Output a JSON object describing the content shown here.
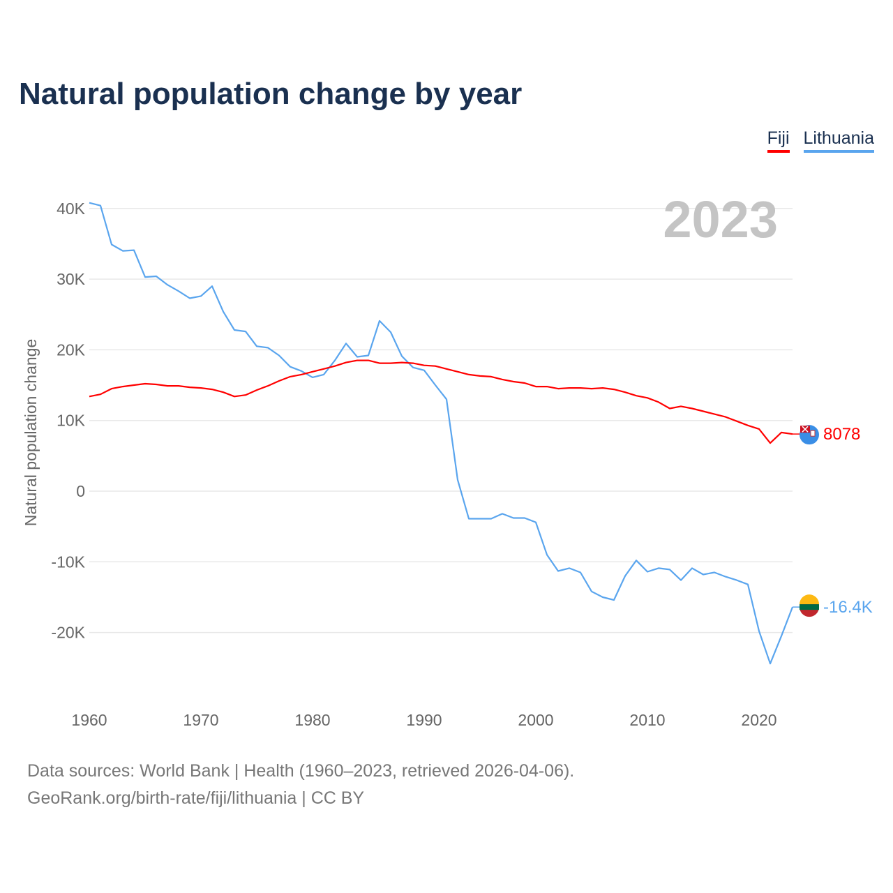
{
  "title": "Natural population change by year",
  "legend": [
    {
      "label": "Fiji",
      "color": "#ff0000"
    },
    {
      "label": "Lithuania",
      "color": "#5aa5ee"
    }
  ],
  "year_label": "2023",
  "footer": {
    "line1": "Data sources: World Bank | Health (1960–2023, retrieved 2026-04-06).",
    "line2": "GeoRank.org/birth-rate/fiji/lithuania | CC BY"
  },
  "chart_data": {
    "type": "line",
    "title": "Natural population change by year",
    "xlabel": "",
    "ylabel": "Natural population change",
    "xlim": [
      1960,
      2023
    ],
    "ylim": [
      -30000,
      42000
    ],
    "x_ticks": [
      1960,
      1970,
      1980,
      1990,
      2000,
      2010,
      2020
    ],
    "x_tick_labels": [
      "1960",
      "1970",
      "1980",
      "1990",
      "2000",
      "2010",
      "2020"
    ],
    "y_ticks": [
      -20000,
      -10000,
      0,
      10000,
      20000,
      30000,
      40000
    ],
    "y_tick_labels": [
      "-20K",
      "-10K",
      "0",
      "10K",
      "20K",
      "30K",
      "40K"
    ],
    "grid": true,
    "legend_position": "top-right",
    "x_start": 1960,
    "series": [
      {
        "name": "Fiji",
        "color": "#ff0000",
        "end_label": "8078",
        "values": [
          13400,
          13700,
          14500,
          14800,
          15000,
          15200,
          15100,
          14900,
          14900,
          14700,
          14600,
          14400,
          14000,
          13400,
          13600,
          14300,
          14900,
          15600,
          16200,
          16500,
          16900,
          17300,
          17700,
          18200,
          18500,
          18500,
          18100,
          18100,
          18200,
          18100,
          17800,
          17700,
          17300,
          16900,
          16500,
          16300,
          16200,
          15800,
          15500,
          15300,
          14800,
          14800,
          14500,
          14600,
          14600,
          14500,
          14600,
          14400,
          14000,
          13500,
          13200,
          12600,
          11700,
          12000,
          11700,
          11300,
          10900,
          10500,
          9900,
          9300,
          8800,
          6800,
          8300,
          8078
        ]
      },
      {
        "name": "Lithuania",
        "color": "#5aa5ee",
        "end_label": "-16.4K",
        "values": [
          40800,
          40400,
          34900,
          34000,
          34100,
          30300,
          30400,
          29200,
          28300,
          27300,
          27600,
          29000,
          25400,
          22800,
          22600,
          20500,
          20300,
          19200,
          17600,
          17000,
          16100,
          16500,
          18500,
          20900,
          19000,
          19200,
          24100,
          22500,
          19100,
          17500,
          17100,
          15000,
          13000,
          1600,
          -3900,
          -3900,
          -3900,
          -3200,
          -3800,
          -3800,
          -4400,
          -9000,
          -11300,
          -10900,
          -11500,
          -14200,
          -15000,
          -15400,
          -12000,
          -9800,
          -11400,
          -10900,
          -11100,
          -12600,
          -10900,
          -11800,
          -11500,
          -12100,
          -12600,
          -13200,
          -19800,
          -24400,
          -20500,
          -16400
        ]
      }
    ]
  }
}
